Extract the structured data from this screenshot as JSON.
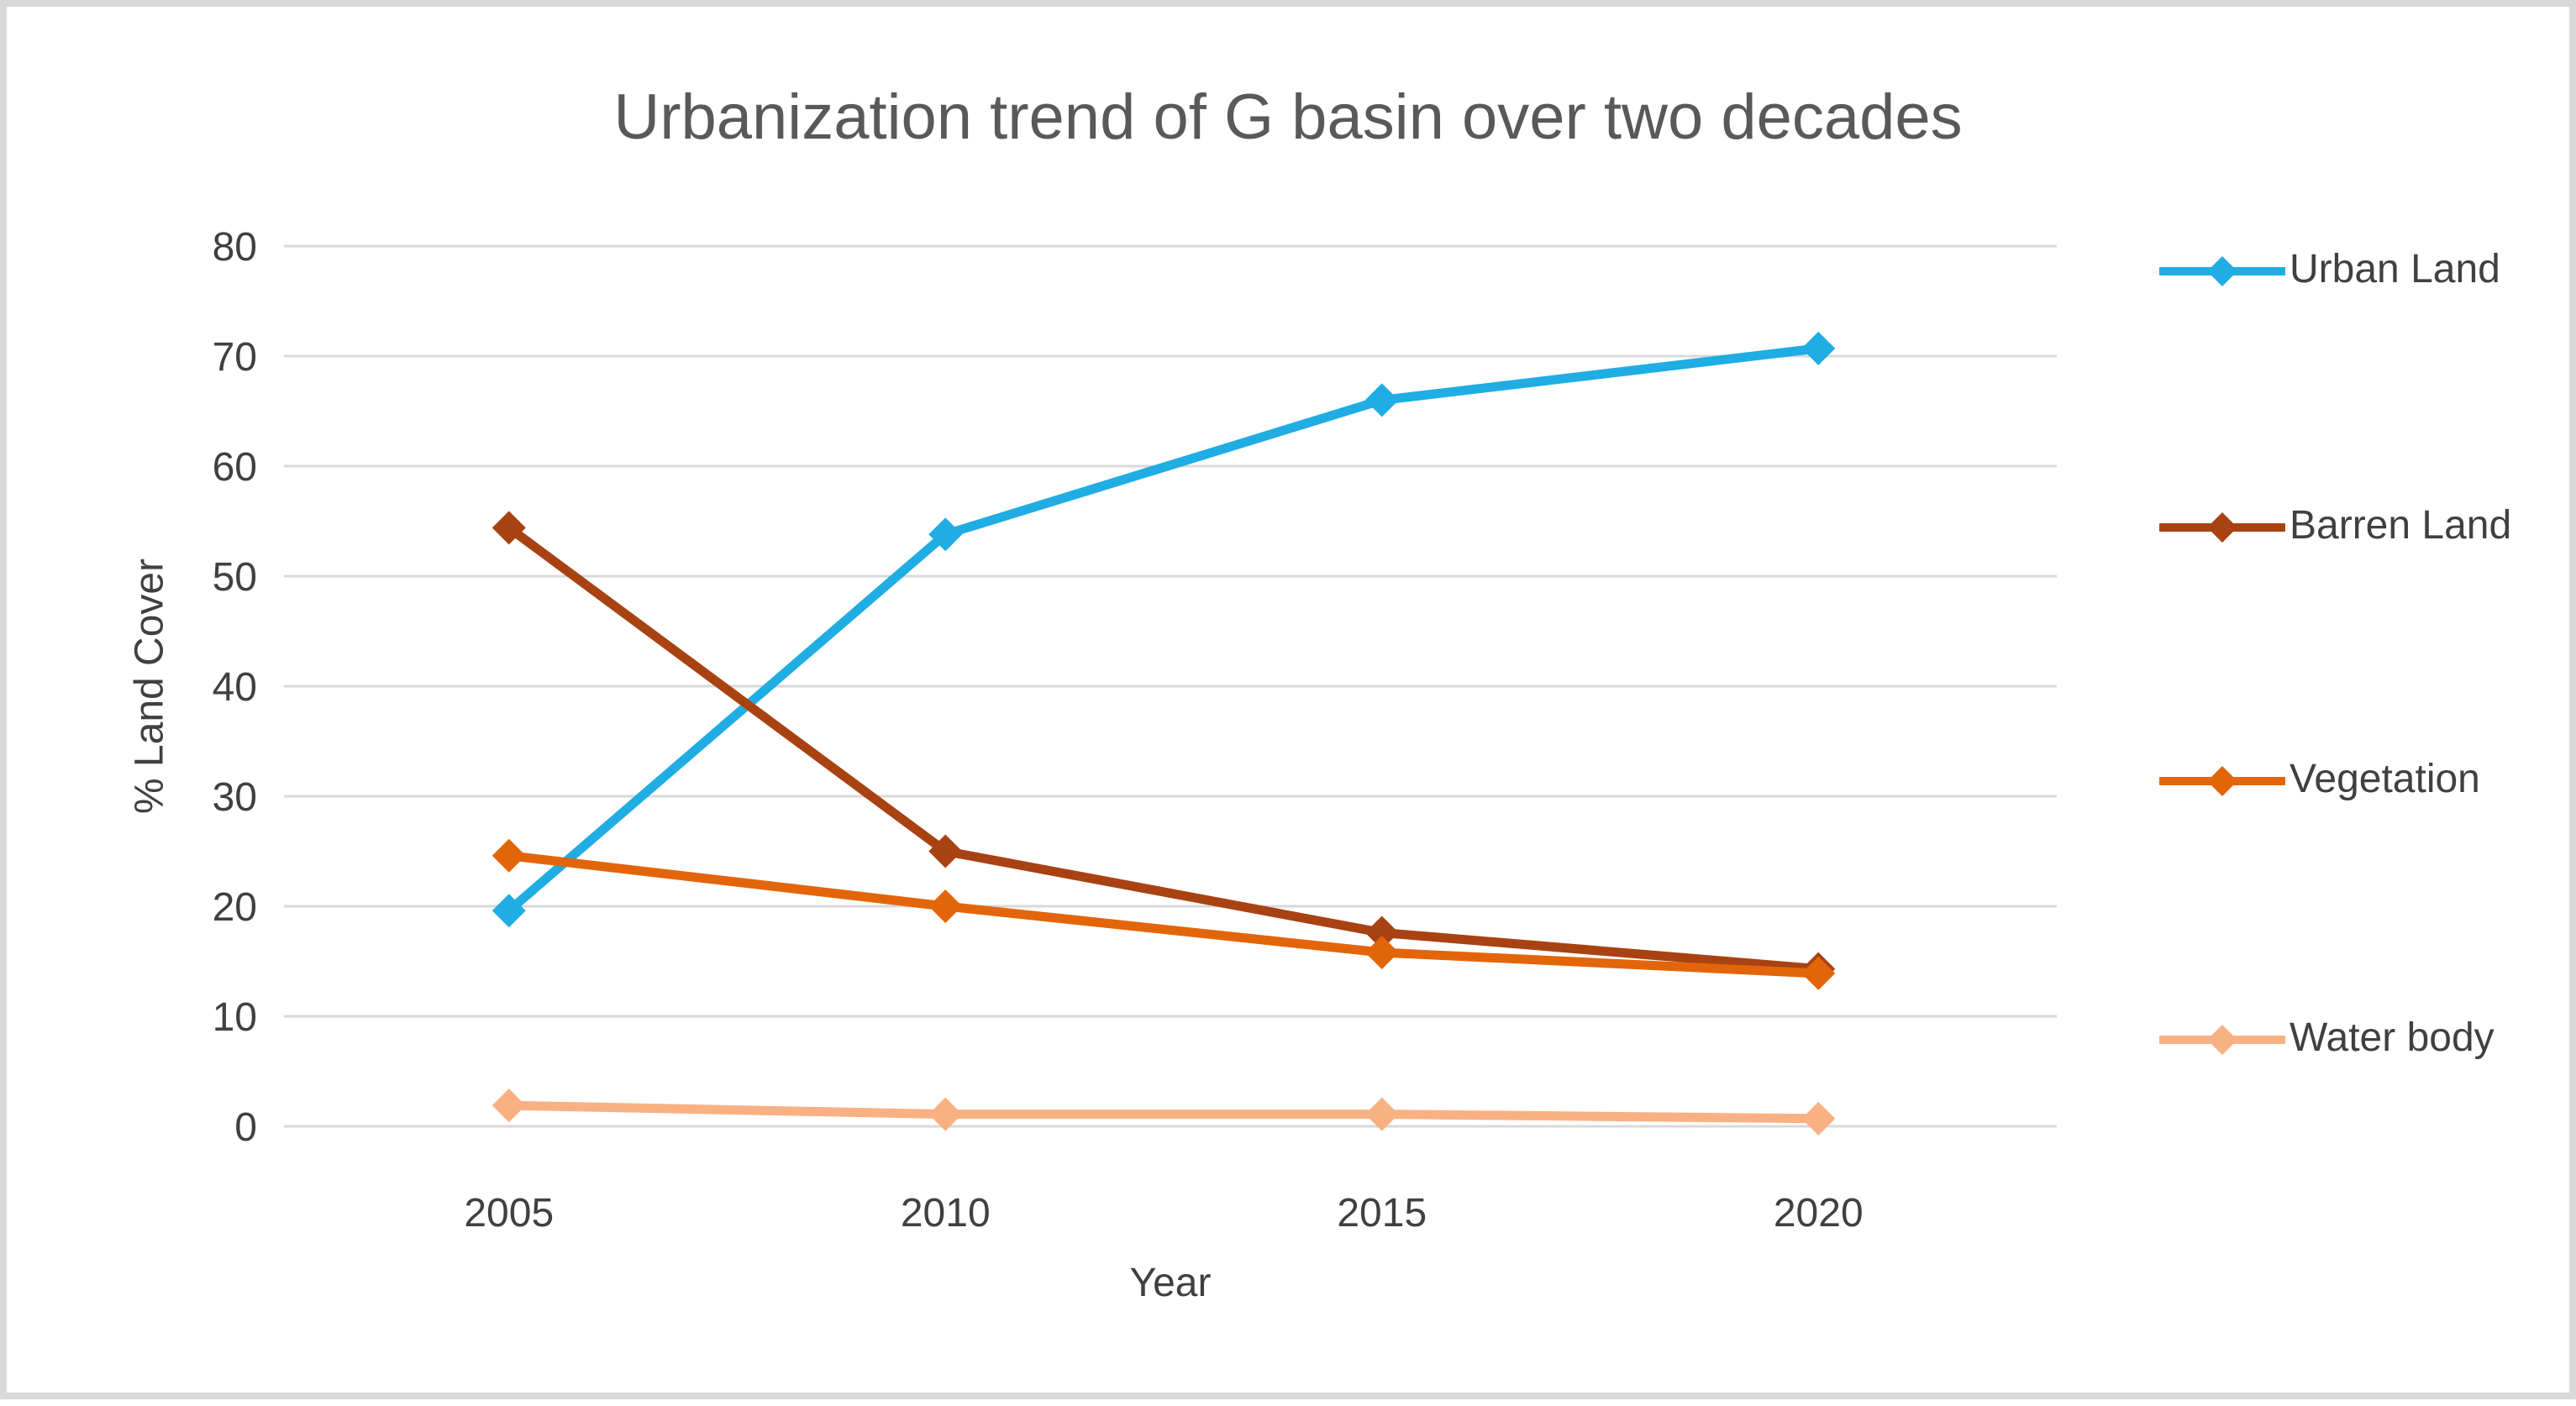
{
  "figure": {
    "title": "Urbanization trend of G basin over two decades"
  },
  "chart_data": {
    "type": "line",
    "title": "Urbanization trend of G basin over two decades",
    "xlabel": "Year",
    "ylabel": "% Land Cover",
    "categories": [
      "2005",
      "2010",
      "2015",
      "2020"
    ],
    "yticks": [
      0,
      10,
      20,
      30,
      40,
      50,
      60,
      70,
      80
    ],
    "ylim": [
      0,
      80
    ],
    "grid": "horizontal",
    "legend_position": "right",
    "marker": "diamond",
    "series": [
      {
        "name": "Urban Land",
        "color": "#1fade4",
        "values": [
          19.6,
          53.8,
          66.0,
          70.7
        ]
      },
      {
        "name": "Barren Land",
        "color": "#a84212",
        "values": [
          54.4,
          25.0,
          17.6,
          14.3
        ]
      },
      {
        "name": "Vegetation",
        "color": "#e3650a",
        "values": [
          24.6,
          20.0,
          15.8,
          13.9
        ]
      },
      {
        "name": "Water body",
        "color": "#f9b183",
        "values": [
          1.9,
          1.1,
          1.1,
          0.7
        ]
      }
    ],
    "colors": {
      "grid": "#d9d9d9",
      "title_text": "#595959",
      "axis_text": "#404040"
    }
  }
}
